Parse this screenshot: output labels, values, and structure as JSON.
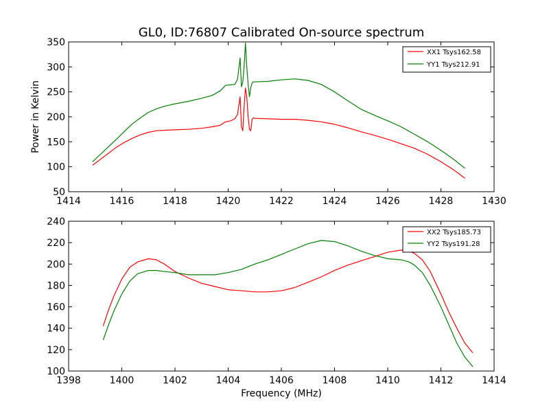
{
  "chart_data": [
    {
      "type": "line",
      "title": "GL0, ID:76807 Calibrated On-source spectrum",
      "xlabel": "",
      "ylabel": "Power in Kelvin",
      "xlim": [
        1414,
        1430
      ],
      "ylim": [
        50,
        350
      ],
      "xticks": [
        "1414",
        "1416",
        "1418",
        "1420",
        "1422",
        "1424",
        "1426",
        "1428",
        "1430"
      ],
      "yticks": [
        "50",
        "100",
        "150",
        "200",
        "250",
        "300",
        "350"
      ],
      "grid": false,
      "legend_position": "top-right",
      "series": [
        {
          "name": "XX1 Tsys162.58",
          "color": "#ff0000",
          "x": [
            1414.9,
            1415.2,
            1415.5,
            1415.8,
            1416.1,
            1416.4,
            1416.7,
            1417.0,
            1417.3,
            1417.6,
            1418.0,
            1418.5,
            1419.0,
            1419.4,
            1419.7,
            1419.9,
            1420.1,
            1420.25,
            1420.35,
            1420.45,
            1420.5,
            1420.55,
            1420.6,
            1420.65,
            1420.7,
            1420.75,
            1420.8,
            1420.85,
            1420.9,
            1420.95,
            1421.0,
            1421.5,
            1422.0,
            1422.5,
            1423.0,
            1423.5,
            1424.0,
            1424.5,
            1425.0,
            1425.5,
            1426.0,
            1426.5,
            1427.0,
            1427.5,
            1428.0,
            1428.5,
            1428.9
          ],
          "y": [
            103,
            115,
            127,
            139,
            149,
            157,
            164,
            169,
            172,
            173,
            174,
            175,
            177,
            180,
            183,
            190,
            192,
            196,
            205,
            240,
            180,
            172,
            220,
            258,
            240,
            200,
            175,
            172,
            195,
            198,
            197,
            196,
            195,
            195,
            193,
            190,
            185,
            178,
            170,
            163,
            155,
            146,
            137,
            125,
            110,
            93,
            77
          ]
        },
        {
          "name": "YY1 Tsys212.91",
          "color": "#008000",
          "x": [
            1414.9,
            1415.2,
            1415.5,
            1415.8,
            1416.1,
            1416.4,
            1416.7,
            1417.0,
            1417.3,
            1417.6,
            1418.0,
            1418.5,
            1419.0,
            1419.4,
            1419.7,
            1419.9,
            1420.1,
            1420.25,
            1420.35,
            1420.45,
            1420.5,
            1420.55,
            1420.6,
            1420.65,
            1420.7,
            1420.75,
            1420.8,
            1420.85,
            1420.9,
            1420.95,
            1421.0,
            1421.5,
            1422.0,
            1422.5,
            1423.0,
            1423.5,
            1424.0,
            1424.5,
            1425.0,
            1425.5,
            1426.0,
            1426.5,
            1427.0,
            1427.5,
            1428.0,
            1428.5,
            1428.9
          ],
          "y": [
            110,
            125,
            140,
            155,
            171,
            186,
            198,
            209,
            216,
            221,
            226,
            231,
            237,
            243,
            252,
            263,
            264,
            265,
            275,
            318,
            260,
            270,
            300,
            348,
            300,
            265,
            240,
            258,
            268,
            270,
            270,
            271,
            274,
            276,
            273,
            265,
            250,
            232,
            215,
            203,
            192,
            180,
            165,
            150,
            133,
            114,
            97
          ]
        }
      ]
    },
    {
      "type": "line",
      "title": "",
      "xlabel": "Frequency (MHz)",
      "ylabel": "",
      "xlim": [
        1398,
        1414
      ],
      "ylim": [
        100,
        240
      ],
      "xticks": [
        "1398",
        "1400",
        "1402",
        "1404",
        "1406",
        "1408",
        "1410",
        "1412",
        "1414"
      ],
      "yticks": [
        "100",
        "120",
        "140",
        "160",
        "180",
        "200",
        "220",
        "240"
      ],
      "grid": false,
      "legend_position": "top-right",
      "series": [
        {
          "name": "XX2 Tsys185.73",
          "color": "#ff0000",
          "x": [
            1399.3,
            1399.5,
            1399.7,
            1400.0,
            1400.3,
            1400.6,
            1401.0,
            1401.3,
            1401.6,
            1402.0,
            1402.5,
            1403.0,
            1403.5,
            1404.0,
            1404.5,
            1405.0,
            1405.5,
            1406.0,
            1406.5,
            1407.0,
            1407.5,
            1408.0,
            1408.5,
            1409.0,
            1409.5,
            1410.0,
            1410.5,
            1410.8,
            1411.0,
            1411.3,
            1411.6,
            1412.0,
            1412.3,
            1412.6,
            1412.9,
            1413.2
          ],
          "y": [
            142,
            157,
            170,
            186,
            197,
            202,
            205,
            204,
            200,
            193,
            187,
            182,
            179,
            176,
            175,
            174,
            174,
            175,
            178,
            183,
            188,
            194,
            199,
            203,
            207,
            211,
            213,
            212,
            210,
            204,
            193,
            172,
            155,
            140,
            126,
            117
          ]
        },
        {
          "name": "YY2 Tsys191.28",
          "color": "#008000",
          "x": [
            1399.3,
            1399.5,
            1399.7,
            1400.0,
            1400.3,
            1400.6,
            1401.0,
            1401.3,
            1401.6,
            1402.0,
            1402.5,
            1403.0,
            1403.5,
            1404.0,
            1404.5,
            1405.0,
            1405.5,
            1406.0,
            1406.5,
            1407.0,
            1407.5,
            1408.0,
            1408.5,
            1409.0,
            1409.5,
            1410.0,
            1410.5,
            1410.8,
            1411.0,
            1411.3,
            1411.6,
            1412.0,
            1412.3,
            1412.6,
            1412.9,
            1413.2
          ],
          "y": [
            129,
            143,
            156,
            172,
            184,
            191,
            194,
            194,
            193,
            192,
            190,
            190,
            190,
            192,
            195,
            200,
            204,
            209,
            214,
            219,
            222,
            221,
            217,
            212,
            208,
            205,
            204,
            202,
            199,
            192,
            180,
            160,
            143,
            126,
            113,
            104
          ]
        }
      ]
    }
  ]
}
